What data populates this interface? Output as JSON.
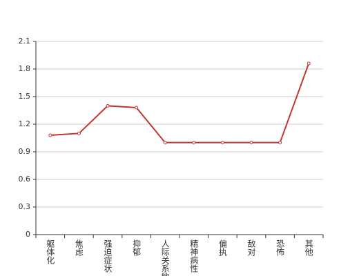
{
  "chart_data": {
    "type": "line",
    "categories": [
      "躯体化",
      "焦虑",
      "强迫症状",
      "抑郁",
      "人际关系敏感",
      "精神病性",
      "偏执",
      "敌对",
      "恐怖",
      "其他"
    ],
    "series": [
      {
        "color": "#c23531",
        "values": [
          1.08,
          1.1,
          1.4,
          1.38,
          1.0,
          1.0,
          1.0,
          1.0,
          1.0,
          1.86
        ]
      }
    ],
    "ylim": [
      0,
      2.1
    ],
    "yticks": [
      0,
      0.3,
      0.6,
      0.9,
      1.2,
      1.5,
      1.8,
      2.1
    ],
    "grid": true
  }
}
